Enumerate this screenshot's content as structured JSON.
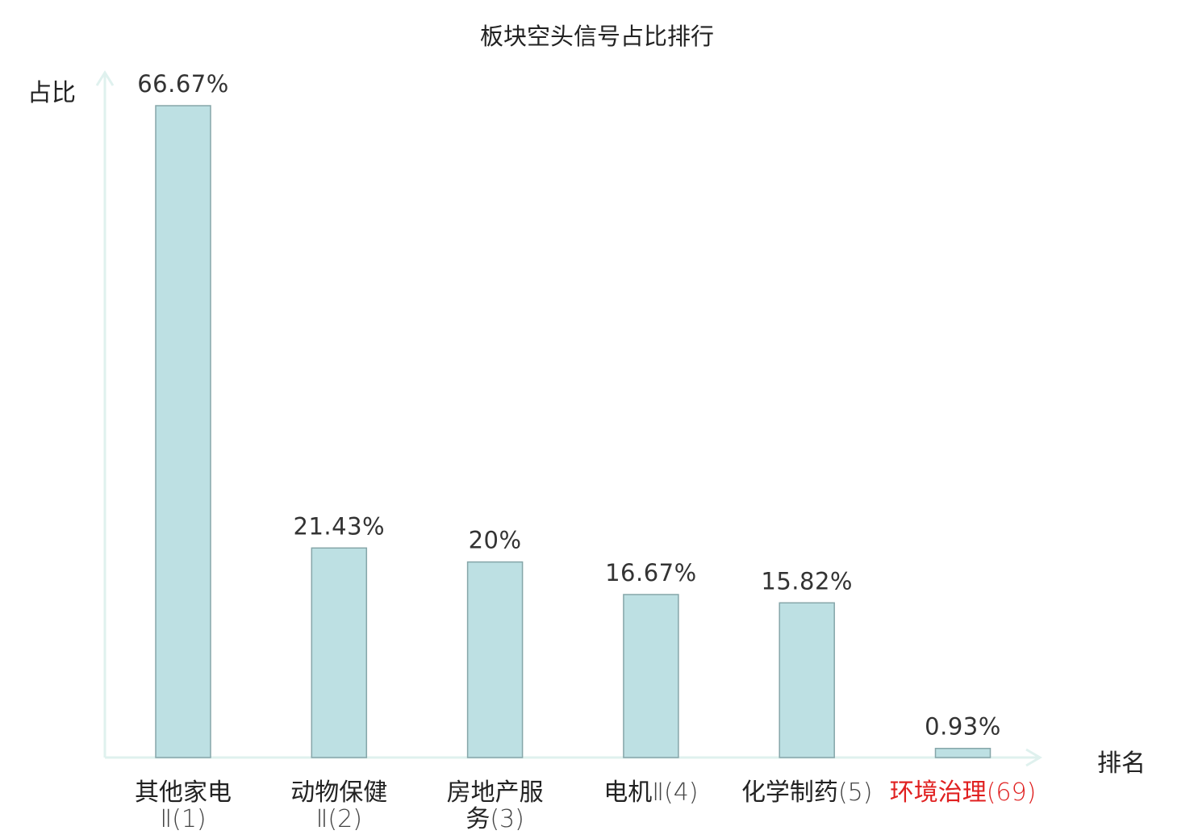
{
  "chart_data": {
    "type": "bar",
    "title": "板块空头信号占比排行",
    "ylabel": "占比",
    "xlabel": "排名",
    "ylim": [
      0,
      66.67
    ],
    "grid": false,
    "categories": [
      {
        "name": "其他家电Ⅱ",
        "rank": "(1)",
        "lines": [
          "其他家电",
          "Ⅱ(1)"
        ],
        "highlight": false
      },
      {
        "name": "动物保健Ⅱ",
        "rank": "(2)",
        "lines": [
          "动物保健",
          "Ⅱ(2)"
        ],
        "highlight": false
      },
      {
        "name": "房地产服务",
        "rank": "(3)",
        "lines": [
          "房地产服",
          "务(3)"
        ],
        "highlight": false
      },
      {
        "name": "电机Ⅱ",
        "rank": "(4)",
        "lines": [
          "电机Ⅱ(4)"
        ],
        "highlight": false
      },
      {
        "name": "化学制药",
        "rank": "(5)",
        "lines": [
          "化学制药(5)"
        ],
        "highlight": false
      },
      {
        "name": "环境治理",
        "rank": "(69)",
        "lines": [
          "环境治理(69)"
        ],
        "highlight": true
      }
    ],
    "values": [
      66.67,
      21.43,
      20,
      16.67,
      15.82,
      0.93
    ],
    "value_labels": [
      "66.67%",
      "21.43%",
      "20%",
      "16.67%",
      "15.82%",
      "0.93%"
    ],
    "colors": {
      "bar_fill": "#bde0e3",
      "bar_stroke": "#86a6a9",
      "axis": "#dff1ee",
      "label": "#333333",
      "highlight": "#e02020"
    }
  }
}
